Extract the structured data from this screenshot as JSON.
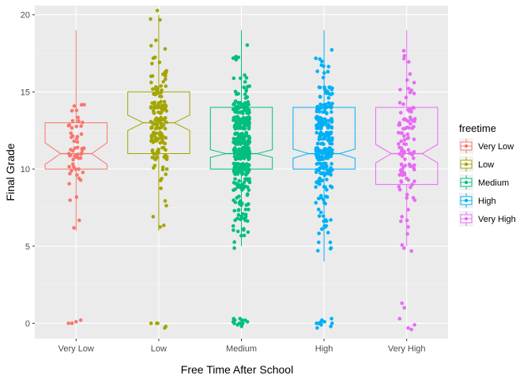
{
  "chart_data": {
    "type": "boxplot",
    "title": "",
    "xlabel": "Free Time After School",
    "ylabel": "Final Grade",
    "ylim": [
      -1.0,
      20.6
    ],
    "yticks": [
      0,
      5,
      10,
      15,
      20
    ],
    "grid": true,
    "notched": true,
    "jitter": true,
    "legend": {
      "title": "freetime",
      "position": "right",
      "entries": [
        "Very Low",
        "Low",
        "Medium",
        "High",
        "Very High"
      ]
    },
    "categories": [
      "Very Low",
      "Low",
      "Medium",
      "High",
      "Very High"
    ],
    "colors": [
      "#F8766D",
      "#A3A500",
      "#00BF7D",
      "#00B0F6",
      "#E76BF3"
    ],
    "boxes": [
      {
        "category": "Very Low",
        "whisker_low": 6,
        "q1": 10,
        "median": 11,
        "q3": 13,
        "whisker_high": 19,
        "notch_low": 10.3,
        "notch_high": 11.7,
        "n": 60,
        "outliers": [
          0,
          0,
          0.2,
          0.1
        ]
      },
      {
        "category": "Low",
        "whisker_low": 6,
        "q1": 11,
        "median": 13,
        "q3": 15,
        "whisker_high": 20,
        "notch_low": 12.5,
        "notch_high": 13.5,
        "n": 170,
        "outliers": [
          0,
          -0.3,
          0,
          -0.2,
          0
        ]
      },
      {
        "category": "Medium",
        "whisker_low": 5,
        "q1": 10,
        "median": 11,
        "q3": 14,
        "whisker_high": 19,
        "notch_low": 10.75,
        "notch_high": 11.25,
        "n": 400,
        "outliers": [
          0,
          0.2,
          -0.1,
          0.3,
          0,
          0.1,
          -0.2,
          0.2,
          0,
          0.1,
          0.3,
          -0.1,
          0,
          0.2
        ]
      },
      {
        "category": "High",
        "whisker_low": 4,
        "q1": 10,
        "median": 11,
        "q3": 14,
        "whisker_high": 19,
        "notch_low": 10.7,
        "notch_high": 11.3,
        "n": 300,
        "outliers": [
          0,
          -0.3,
          0.2,
          0.1,
          0,
          -0.2,
          0.3,
          0,
          0.1,
          -0.1
        ]
      },
      {
        "category": "Very High",
        "whisker_low": 5,
        "q1": 9,
        "median": 11,
        "q3": 14,
        "whisker_high": 19,
        "notch_low": 10.4,
        "notch_high": 11.6,
        "n": 115,
        "outliers": [
          1.3,
          1.0,
          0.3,
          -0.1,
          -0.3,
          -0.4
        ]
      }
    ]
  }
}
